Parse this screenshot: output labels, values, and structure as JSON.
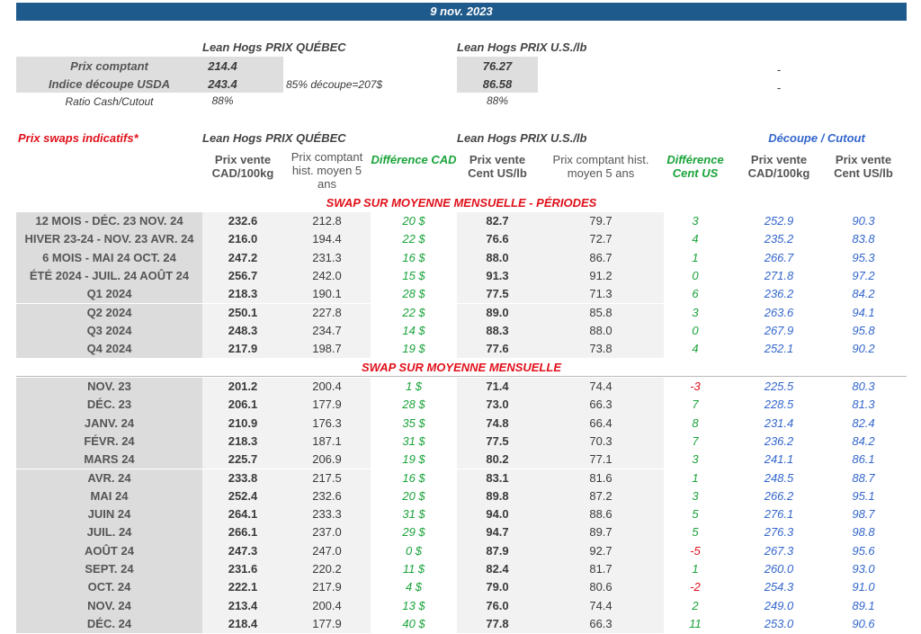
{
  "date": "9 nov. 2023",
  "summary": {
    "quebec_title": "Lean Hogs PRIX QUÉBEC",
    "us_title": "Lean Hogs PRIX U.S./lb",
    "rows": [
      {
        "label": "Prix comptant",
        "quebec": "214.4",
        "note": "",
        "us": "76.27",
        "extra": "-"
      },
      {
        "label": "Indice découpe USDA",
        "quebec": "243.4",
        "note": "85% découpe=207$",
        "us": "86.58",
        "extra": "-"
      }
    ],
    "ratio_label": "Ratio Cash/Cutout",
    "ratio_quebec": "88%",
    "ratio_us": "88%"
  },
  "swaps": {
    "title": "Prix swaps indicatifs*",
    "quebec_title": "Lean Hogs PRIX QUÉBEC",
    "us_title": "Lean Hogs PRIX U.S./lb",
    "cutout_title": "Découpe / Cutout",
    "columns": [
      "Prix vente CAD/100kg",
      "Prix comptant hist. moyen 5 ans",
      "Différence CAD",
      "Prix vente Cent US/lb",
      "Prix comptant hist. moyen 5 ans",
      "Différence Cent US",
      "Prix vente CAD/100kg",
      "Prix vente Cent US/lb"
    ],
    "periods_title": "SWAP SUR MOYENNE MENSUELLE - PÉRIODES",
    "periods": [
      [
        "12 MOIS - DÉC. 23 NOV. 24",
        "232.6",
        "212.8",
        "20 $",
        "82.7",
        "79.7",
        "3",
        "252.9",
        "90.3"
      ],
      [
        "HIVER 23-24 -  NOV. 23 AVR. 24",
        "216.0",
        "194.4",
        "22 $",
        "76.6",
        "72.7",
        "4",
        "235.2",
        "83.8"
      ],
      [
        "6 MOIS -  MAI 24 OCT. 24",
        "247.2",
        "231.3",
        "16 $",
        "88.0",
        "86.7",
        "1",
        "266.7",
        "95.3"
      ],
      [
        "ÉTÉ 2024 - JUIL. 24 AOÛT 24",
        "256.7",
        "242.0",
        "15 $",
        "91.3",
        "91.2",
        "0",
        "271.8",
        "97.2"
      ],
      [
        "Q1 2024",
        "218.3",
        "190.1",
        "28 $",
        "77.5",
        "71.3",
        "6",
        "236.2",
        "84.2"
      ],
      [
        "Q2 2024",
        "250.1",
        "227.8",
        "22 $",
        "89.0",
        "85.8",
        "3",
        "263.6",
        "94.1"
      ],
      [
        "Q3 2024",
        "248.3",
        "234.7",
        "14 $",
        "88.3",
        "88.0",
        "0",
        "267.9",
        "95.8"
      ],
      [
        "Q4 2024",
        "217.9",
        "198.7",
        "19 $",
        "77.6",
        "73.8",
        "4",
        "252.1",
        "90.2"
      ]
    ],
    "monthly_title": "SWAP SUR MOYENNE MENSUELLE",
    "monthly": [
      [
        "NOV. 23",
        "201.2",
        "200.4",
        "1 $",
        "71.4",
        "74.4",
        "-3",
        "225.5",
        "80.3"
      ],
      [
        "DÉC. 23",
        "206.1",
        "177.9",
        "28 $",
        "73.0",
        "66.3",
        "7",
        "228.5",
        "81.3"
      ],
      [
        "JANV. 24",
        "210.9",
        "176.3",
        "35 $",
        "74.8",
        "66.4",
        "8",
        "231.4",
        "82.4"
      ],
      [
        "FÉVR. 24",
        "218.3",
        "187.1",
        "31 $",
        "77.5",
        "70.3",
        "7",
        "236.2",
        "84.2"
      ],
      [
        "MARS 24",
        "225.7",
        "206.9",
        "19 $",
        "80.2",
        "77.1",
        "3",
        "241.1",
        "86.1"
      ],
      [
        "AVR. 24",
        "233.8",
        "217.5",
        "16 $",
        "83.1",
        "81.6",
        "1",
        "248.5",
        "88.7"
      ],
      [
        "MAI 24",
        "252.4",
        "232.6",
        "20 $",
        "89.8",
        "87.2",
        "3",
        "266.2",
        "95.1"
      ],
      [
        "JUIN 24",
        "264.1",
        "233.3",
        "31 $",
        "94.0",
        "88.6",
        "5",
        "276.1",
        "98.7"
      ],
      [
        "JUIL. 24",
        "266.1",
        "237.0",
        "29 $",
        "94.7",
        "89.7",
        "5",
        "276.3",
        "98.8"
      ],
      [
        "AOÛT 24",
        "247.3",
        "247.0",
        "0 $",
        "87.9",
        "92.7",
        "-5",
        "267.3",
        "95.6"
      ],
      [
        "SEPT. 24",
        "231.6",
        "220.2",
        "11 $",
        "82.4",
        "81.7",
        "1",
        "260.0",
        "93.0"
      ],
      [
        "OCT. 24",
        "222.1",
        "217.9",
        "4 $",
        "79.0",
        "80.6",
        "-2",
        "254.3",
        "91.0"
      ],
      [
        "NOV. 24",
        "213.4",
        "200.4",
        "13 $",
        "76.0",
        "74.4",
        "2",
        "249.0",
        "89.1"
      ],
      [
        "DÉC. 24",
        "218.4",
        "177.9",
        "40 $",
        "77.8",
        "66.3",
        "11",
        "253.0",
        "90.6"
      ]
    ]
  },
  "colors": {
    "header": "#1f5a8c",
    "positive": "#1aa33a",
    "negative": "#e0101a",
    "cutout": "#3366cc",
    "section": "#e0101a"
  }
}
